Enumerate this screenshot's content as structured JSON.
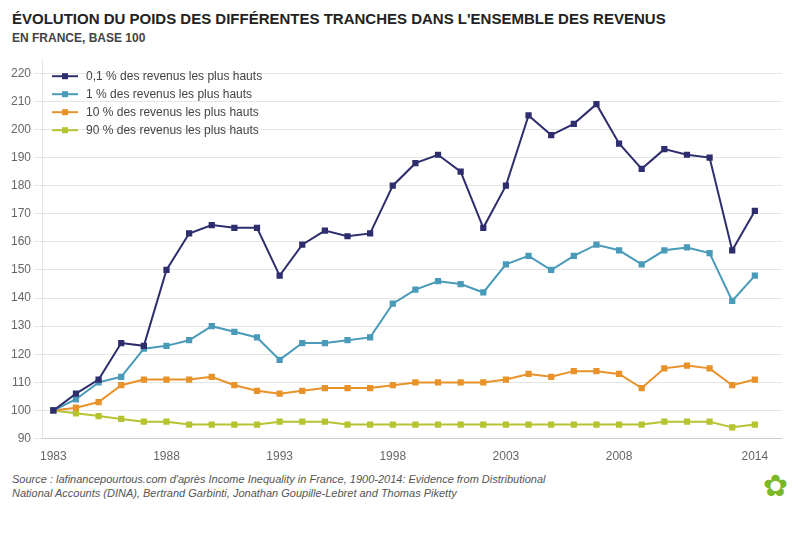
{
  "chart_data": {
    "type": "line",
    "title": "ÉVOLUTION DU POIDS DES DIFFÉRENTES TRANCHES DANS L'ENSEMBLE DES REVENUS",
    "subtitle": "EN FRANCE, BASE 100",
    "source": "Source : lafinancepourtous.com d'après Income Inequality in France, 1900-2014: Evidence from Distributional\nNational Accounts (DINA), Bertrand Garbinti, Jonathan Goupille-Lebret and Thomas Piketty",
    "annotations": [
      {
        "text": "✿",
        "color": "#7ab829"
      }
    ],
    "x": [
      1983,
      1984,
      1985,
      1986,
      1987,
      1988,
      1989,
      1990,
      1991,
      1992,
      1993,
      1994,
      1995,
      1996,
      1997,
      1998,
      1999,
      2000,
      2001,
      2002,
      2003,
      2004,
      2005,
      2006,
      2007,
      2008,
      2009,
      2010,
      2011,
      2012,
      2013,
      2014
    ],
    "series": [
      {
        "name": "0,1 % des revenus les plus hauts",
        "color": "#2e2e6e",
        "marker": "square",
        "values": [
          100,
          106,
          111,
          124,
          123,
          150,
          163,
          166,
          165,
          165,
          148,
          159,
          164,
          162,
          163,
          180,
          188,
          191,
          185,
          165,
          180,
          205,
          198,
          202,
          209,
          195,
          186,
          193,
          191,
          190,
          157,
          171
        ]
      },
      {
        "name": "1 % des revenus les plus hauts",
        "color": "#4a9aba",
        "marker": "square",
        "values": [
          100,
          104,
          110,
          112,
          122,
          123,
          125,
          130,
          128,
          126,
          118,
          124,
          124,
          125,
          126,
          138,
          143,
          146,
          145,
          142,
          152,
          155,
          150,
          155,
          159,
          157,
          152,
          157,
          158,
          156,
          139,
          148
        ]
      },
      {
        "name": "10 % des revenus les plus hauts",
        "color": "#e8922a",
        "marker": "square",
        "values": [
          100,
          101,
          103,
          109,
          111,
          111,
          111,
          112,
          109,
          107,
          106,
          107,
          108,
          108,
          108,
          109,
          110,
          110,
          110,
          110,
          111,
          113,
          112,
          114,
          114,
          113,
          108,
          115,
          116,
          115,
          109,
          111
        ]
      },
      {
        "name": "90 % des revenus les plus hauts",
        "color": "#b5c430",
        "marker": "square",
        "values": [
          100,
          99,
          98,
          97,
          96,
          96,
          95,
          95,
          95,
          95,
          96,
          96,
          96,
          95,
          95,
          95,
          95,
          95,
          95,
          95,
          95,
          95,
          95,
          95,
          95,
          95,
          95,
          96,
          96,
          96,
          94,
          95
        ]
      }
    ],
    "xlim": [
      1982.5,
      2015.2
    ],
    "xticks": [
      1983,
      1988,
      1993,
      1998,
      2003,
      2008,
      2014
    ],
    "ylim": [
      90,
      225
    ],
    "yticks": [
      90,
      100,
      110,
      120,
      130,
      140,
      150,
      160,
      170,
      180,
      190,
      200,
      210,
      220
    ],
    "grid": "y",
    "legend": "upper left"
  }
}
